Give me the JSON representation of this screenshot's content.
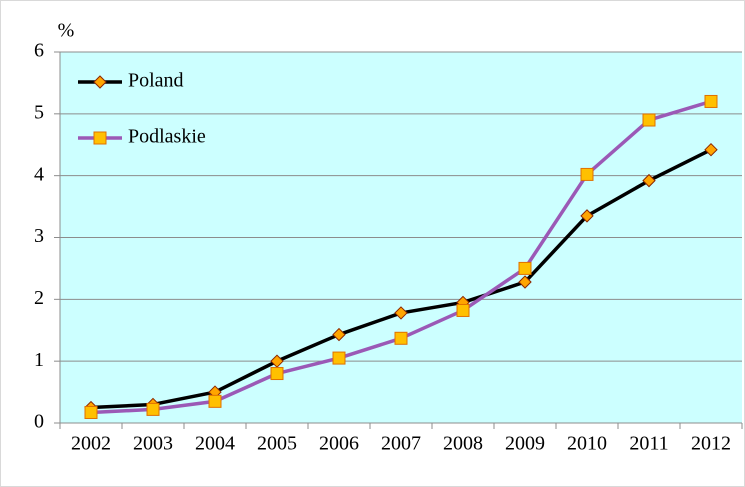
{
  "chart_data": {
    "type": "line",
    "y_label": "%",
    "categories": [
      "2002",
      "2003",
      "2004",
      "2005",
      "2006",
      "2007",
      "2008",
      "2009",
      "2010",
      "2011",
      "2012"
    ],
    "series": [
      {
        "name": "Poland",
        "color": "#000000",
        "marker": "diamond",
        "marker_color": "#ffa500",
        "values": [
          0.25,
          0.3,
          0.5,
          1.0,
          1.43,
          1.78,
          1.95,
          2.28,
          3.35,
          3.92,
          4.42
        ]
      },
      {
        "name": "Podlaskie",
        "color": "#9b59b6",
        "marker": "square",
        "marker_color": "#ffc000",
        "values": [
          0.17,
          0.22,
          0.35,
          0.8,
          1.05,
          1.37,
          1.82,
          2.5,
          4.02,
          4.9,
          5.2
        ]
      }
    ],
    "ylim": [
      0,
      6
    ],
    "yticks": [
      0,
      1,
      2,
      3,
      4,
      5,
      6
    ],
    "grid": true,
    "plot_background": "#ccffff",
    "legend": "upper-left"
  }
}
